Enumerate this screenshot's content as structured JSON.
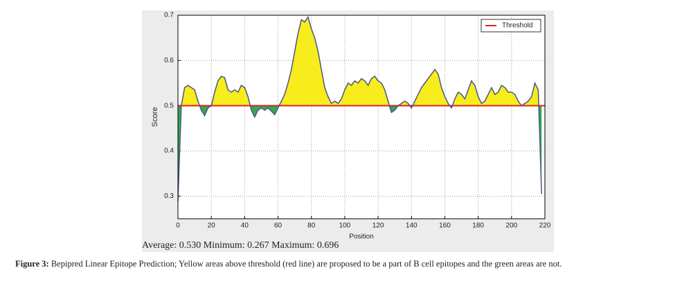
{
  "chart_data": {
    "type": "area_threshold",
    "xlabel": "Position",
    "ylabel": "Score",
    "x": [
      0,
      2,
      4,
      6,
      8,
      10,
      12,
      14,
      16,
      18,
      20,
      22,
      24,
      26,
      28,
      30,
      32,
      34,
      36,
      38,
      40,
      42,
      44,
      46,
      48,
      50,
      52,
      54,
      56,
      58,
      60,
      62,
      64,
      66,
      68,
      70,
      72,
      74,
      76,
      78,
      80,
      82,
      84,
      86,
      88,
      90,
      92,
      94,
      96,
      98,
      100,
      102,
      104,
      106,
      108,
      110,
      112,
      114,
      116,
      118,
      120,
      122,
      124,
      126,
      128,
      130,
      132,
      134,
      136,
      138,
      140,
      142,
      144,
      146,
      148,
      150,
      152,
      154,
      156,
      158,
      160,
      162,
      164,
      166,
      168,
      170,
      172,
      174,
      176,
      178,
      180,
      182,
      184,
      186,
      188,
      190,
      192,
      194,
      196,
      198,
      200,
      202,
      204,
      206,
      208,
      210,
      212,
      214,
      216,
      218
    ],
    "series": [
      {
        "name": "Score",
        "color": "#4a5684",
        "above_color": "#f7ec1c",
        "below_color": "#34a853",
        "values": [
          0.289,
          0.5,
          0.54,
          0.545,
          0.54,
          0.535,
          0.51,
          0.49,
          0.478,
          0.495,
          0.5,
          0.53,
          0.555,
          0.565,
          0.562,
          0.535,
          0.53,
          0.535,
          0.53,
          0.545,
          0.54,
          0.52,
          0.49,
          0.475,
          0.49,
          0.495,
          0.49,
          0.495,
          0.488,
          0.48,
          0.495,
          0.51,
          0.525,
          0.55,
          0.58,
          0.62,
          0.66,
          0.69,
          0.685,
          0.696,
          0.67,
          0.65,
          0.62,
          0.58,
          0.54,
          0.52,
          0.505,
          0.51,
          0.505,
          0.515,
          0.535,
          0.55,
          0.545,
          0.555,
          0.55,
          0.56,
          0.555,
          0.545,
          0.56,
          0.565,
          0.555,
          0.55,
          0.535,
          0.51,
          0.485,
          0.49,
          0.5,
          0.505,
          0.51,
          0.505,
          0.495,
          0.51,
          0.525,
          0.54,
          0.55,
          0.56,
          0.57,
          0.58,
          0.57,
          0.54,
          0.52,
          0.505,
          0.495,
          0.515,
          0.53,
          0.525,
          0.515,
          0.535,
          0.555,
          0.545,
          0.52,
          0.505,
          0.51,
          0.525,
          0.54,
          0.525,
          0.53,
          0.545,
          0.54,
          0.53,
          0.53,
          0.525,
          0.51,
          0.5,
          0.505,
          0.51,
          0.52,
          0.55,
          0.535,
          0.305
        ]
      }
    ],
    "threshold": {
      "name": "Threshold",
      "value": 0.5,
      "color": "#e02020"
    },
    "xlim": [
      0,
      220
    ],
    "xticks": [
      0,
      20,
      40,
      60,
      80,
      100,
      120,
      140,
      160,
      180,
      200,
      220
    ],
    "ylim": [
      0.25,
      0.7
    ],
    "yticks": [
      0.3,
      0.4,
      0.5,
      0.6,
      0.7
    ],
    "grid": true,
    "legend": "upper right",
    "stats": "Average: 0.530 Minimum: 0.267 Maximum: 0.696"
  },
  "caption": {
    "label": "Figure 3:",
    "text": "Bepipred Linear Epitope Prediction; Yellow areas above threshold (red line) are proposed to be a part of B cell epitopes and the green areas are not."
  }
}
